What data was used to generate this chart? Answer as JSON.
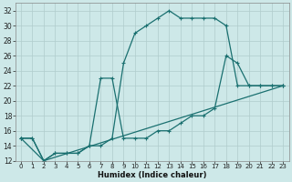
{
  "xlabel": "Humidex (Indice chaleur)",
  "bg_color": "#cde8e8",
  "line_color": "#1a7070",
  "grid_color": "#b0cccc",
  "xlim": [
    -0.5,
    23.5
  ],
  "ylim": [
    12,
    33
  ],
  "xticks": [
    0,
    1,
    2,
    3,
    4,
    5,
    6,
    7,
    8,
    9,
    10,
    11,
    12,
    13,
    14,
    15,
    16,
    17,
    18,
    19,
    20,
    21,
    22,
    23
  ],
  "yticks": [
    12,
    14,
    16,
    18,
    20,
    22,
    24,
    26,
    28,
    30,
    32
  ],
  "line1_x": [
    0,
    1,
    2,
    3,
    4,
    5,
    6,
    7,
    8,
    9,
    10,
    11,
    12,
    13,
    14,
    15,
    16,
    17,
    18,
    19,
    20,
    21,
    22,
    23
  ],
  "line1_y": [
    15,
    15,
    12,
    13,
    13,
    13,
    14,
    14,
    15,
    25,
    29,
    30,
    31,
    32,
    31,
    31,
    31,
    31,
    30,
    22,
    22,
    22,
    22,
    22
  ],
  "line2_x": [
    0,
    1,
    2,
    3,
    4,
    5,
    6,
    7,
    8,
    9,
    10,
    11,
    12,
    13,
    14,
    15,
    16,
    17,
    18,
    19,
    20,
    21,
    22,
    23
  ],
  "line2_y": [
    15,
    15,
    12,
    13,
    13,
    13,
    14,
    23,
    23,
    15,
    15,
    15,
    16,
    16,
    17,
    18,
    18,
    19,
    26,
    25,
    22,
    22,
    22,
    22
  ],
  "line3_x": [
    0,
    2,
    23
  ],
  "line3_y": [
    15,
    12,
    22
  ],
  "marker_size": 3,
  "linewidth": 0.9,
  "xlabel_fontsize": 6,
  "tick_fontsize": 5,
  "ytick_fontsize": 5.5
}
